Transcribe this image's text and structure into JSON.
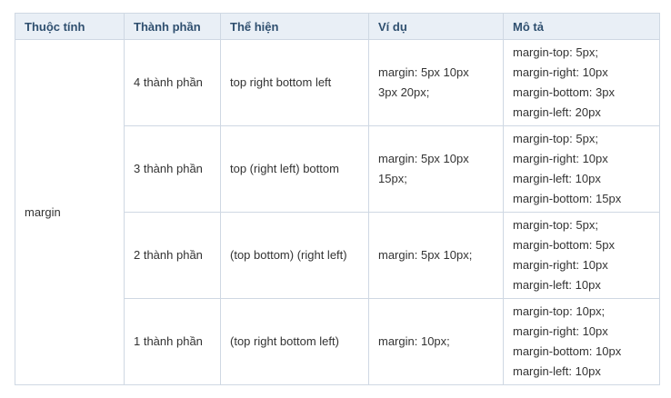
{
  "headers": [
    "Thuộc tính",
    "Thành phần",
    "Thể hiện",
    "Ví dụ",
    "Mô tả"
  ],
  "property": "margin",
  "rows": [
    {
      "count": "4 thành phần",
      "syntax": "top right bottom left",
      "example": [
        "margin: 5px 10px",
        "3px 20px;"
      ],
      "description": [
        "margin-top: 5px;",
        "margin-right: 10px",
        "margin-bottom: 3px",
        "margin-left: 20px"
      ]
    },
    {
      "count": "3 thành phần",
      "syntax": "top (right left) bottom",
      "example": [
        "margin: 5px 10px",
        "15px;"
      ],
      "description": [
        "margin-top: 5px;",
        "margin-right: 10px",
        "margin-left: 10px",
        "margin-bottom: 15px"
      ]
    },
    {
      "count": "2 thành phần",
      "syntax": "(top bottom) (right left)",
      "example": [
        "margin: 5px 10px;"
      ],
      "description": [
        "margin-top: 5px;",
        "margin-bottom: 5px",
        "margin-right: 10px",
        "margin-left: 10px"
      ]
    },
    {
      "count": "1 thành phần",
      "syntax": "(top right bottom left)",
      "example": [
        "margin: 10px;"
      ],
      "description": [
        "margin-top: 10px;",
        "margin-right: 10px",
        "margin-bottom: 10px",
        "margin-left: 10px"
      ]
    }
  ]
}
